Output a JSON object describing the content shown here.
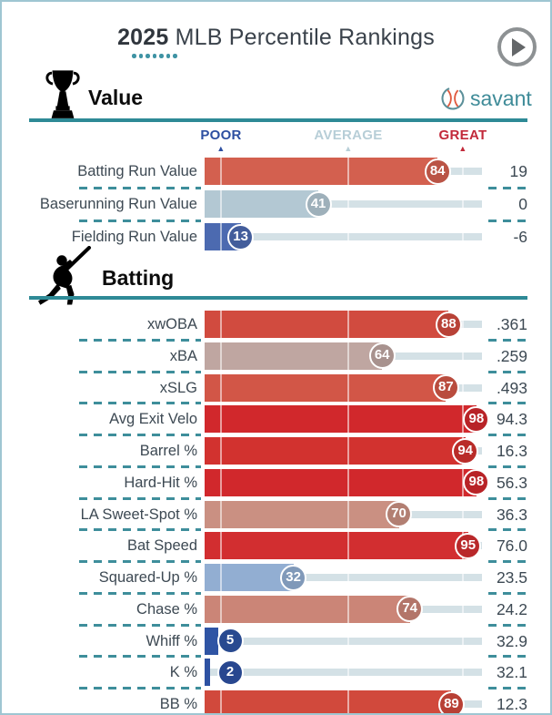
{
  "title": {
    "year": "2025",
    "text": "MLB Percentile Rankings",
    "dots": 7
  },
  "play_button": {
    "label": "play"
  },
  "logo": {
    "text": "savant"
  },
  "scale": {
    "poor": "POOR",
    "average": "AVERAGE",
    "great": "GREAT"
  },
  "colors": {
    "teal": "#2e8a96",
    "teal_dash": "#3e8e9b",
    "teal_dot": "#3f93a4",
    "border": "#9fc6d2",
    "title": "#3a424b",
    "label": "#3d4953",
    "track": "#d4e1e6",
    "poor": "#2d4fa1",
    "average": "#b7ced7",
    "great": "#c2293a",
    "logo_text": "#3e8b98",
    "logo_stitch": "#e05a3f",
    "play_ring": "#8d9193",
    "play_tri": "#646769"
  },
  "sections": [
    {
      "title": "Value",
      "icon": "trophy-icon",
      "rows": [
        {
          "label": "Batting Run Value",
          "percentile": 84,
          "value": "19",
          "color": "#d3604f"
        },
        {
          "label": "Baserunning Run Value",
          "percentile": 41,
          "value": "0",
          "color": "#b3c8d3"
        },
        {
          "label": "Fielding Run Value",
          "percentile": 13,
          "value": "-6",
          "color": "#4c6ab0"
        }
      ]
    },
    {
      "title": "Batting",
      "icon": "batter-icon",
      "rows": [
        {
          "label": "xwOBA",
          "percentile": 88,
          "value": ".361",
          "color": "#d14b3f"
        },
        {
          "label": "xBA",
          "percentile": 64,
          "value": ".259",
          "color": "#bfa6a1"
        },
        {
          "label": "xSLG",
          "percentile": 87,
          "value": ".493",
          "color": "#d25647"
        },
        {
          "label": "Avg Exit Velo",
          "percentile": 98,
          "value": "94.3",
          "color": "#d1282c"
        },
        {
          "label": "Barrel %",
          "percentile": 94,
          "value": "16.3",
          "color": "#d2322f"
        },
        {
          "label": "Hard-Hit %",
          "percentile": 98,
          "value": "56.3",
          "color": "#d1282c"
        },
        {
          "label": "LA Sweet-Spot %",
          "percentile": 70,
          "value": "36.3",
          "color": "#ca9082"
        },
        {
          "label": "Bat Speed",
          "percentile": 95,
          "value": "76.0",
          "color": "#d22e30"
        },
        {
          "label": "Squared-Up %",
          "percentile": 32,
          "value": "23.5",
          "color": "#92aed2"
        },
        {
          "label": "Chase %",
          "percentile": 74,
          "value": "24.2",
          "color": "#cb8577"
        },
        {
          "label": "Whiff %",
          "percentile": 5,
          "value": "32.9",
          "color": "#2f54a4"
        },
        {
          "label": "K %",
          "percentile": 2,
          "value": "32.1",
          "color": "#2d51a2"
        },
        {
          "label": "BB %",
          "percentile": 89,
          "value": "12.3",
          "color": "#d1493c"
        }
      ]
    }
  ],
  "chart_data": {
    "type": "bar",
    "title": "2025 MLB Percentile Rankings",
    "xlabel": "Percentile",
    "ylabel": "",
    "x_range": [
      0,
      100
    ],
    "scale_markers": {
      "POOR": 10,
      "AVERAGE": 50,
      "GREAT": 90
    },
    "sections": [
      {
        "name": "Value",
        "categories": [
          "Batting Run Value",
          "Baserunning Run Value",
          "Fielding Run Value"
        ],
        "percentiles": [
          84,
          41,
          13
        ],
        "displayed_values": [
          "19",
          "0",
          "-6"
        ]
      },
      {
        "name": "Batting",
        "categories": [
          "xwOBA",
          "xBA",
          "xSLG",
          "Avg Exit Velo",
          "Barrel %",
          "Hard-Hit %",
          "LA Sweet-Spot %",
          "Bat Speed",
          "Squared-Up %",
          "Chase %",
          "Whiff %",
          "K %",
          "BB %"
        ],
        "percentiles": [
          88,
          64,
          87,
          98,
          94,
          98,
          70,
          95,
          32,
          74,
          5,
          2,
          89
        ],
        "displayed_values": [
          ".361",
          ".259",
          ".493",
          "94.3",
          "16.3",
          "56.3",
          "36.3",
          "76.0",
          "23.5",
          "24.2",
          "32.9",
          "32.1",
          "12.3"
        ]
      }
    ]
  }
}
